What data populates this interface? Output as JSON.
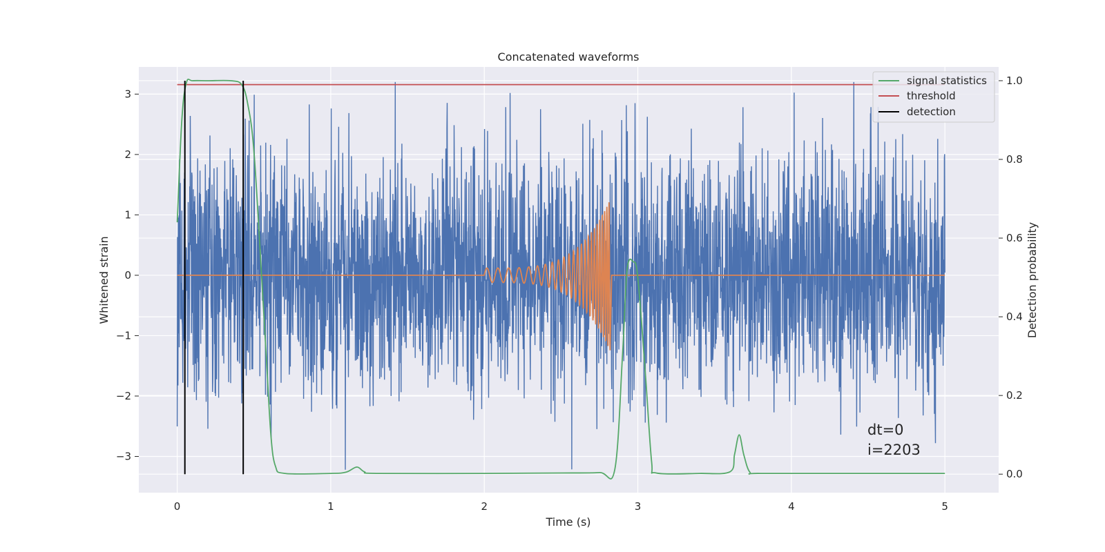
{
  "chart_data": {
    "type": "line",
    "title": "Concatenated waveforms",
    "xlabel": "Time (s)",
    "ylabel_left": "Whitened strain",
    "ylabel_right": "Detection probability",
    "xlim": [
      -0.25,
      5.35
    ],
    "ylim_left": [
      -3.6,
      3.45
    ],
    "ylim_right": [
      -0.047,
      1.035
    ],
    "x_ticks": [
      0,
      1,
      2,
      3,
      4,
      5
    ],
    "x_tick_labels": [
      "0",
      "1",
      "2",
      "3",
      "4",
      "5"
    ],
    "y_left_ticks": [
      3,
      2,
      1,
      0,
      -1,
      -2,
      -3
    ],
    "y_left_tick_labels": [
      "3",
      "2",
      "1",
      "0",
      "−1",
      "−2",
      "−3"
    ],
    "y_right_ticks": [
      1.0,
      0.8,
      0.6,
      0.4,
      0.2,
      0.0
    ],
    "y_right_tick_labels": [
      "1.0",
      "0.8",
      "0.6",
      "0.4",
      "0.2",
      "0.0"
    ],
    "grid": true,
    "legend_position": "top-right",
    "series": [
      {
        "name": "whitened strain (noisy)",
        "axis": "left",
        "color": "#4c72b0",
        "description": "dense noise between roughly -2.9 and +3.2",
        "x_range": [
          0,
          5
        ],
        "approx_range": [
          -3.3,
          3.2
        ]
      },
      {
        "name": "waveform",
        "axis": "left",
        "color": "#dd8452",
        "description": "chirp starting at 2.0 s, growing to ~1.2 amplitude, ending at 2.82 s",
        "chirp_start": 2.0,
        "chirp_end": 2.82,
        "peak_amplitude": 1.25
      },
      {
        "name": "signal statistics",
        "axis": "right",
        "color": "#55a868",
        "points": [
          [
            0.0,
            0.64
          ],
          [
            0.03,
            0.9
          ],
          [
            0.06,
            0.995
          ],
          [
            0.1,
            1.0
          ],
          [
            0.2,
            1.0
          ],
          [
            0.35,
            1.0
          ],
          [
            0.42,
            0.99
          ],
          [
            0.46,
            0.94
          ],
          [
            0.5,
            0.82
          ],
          [
            0.55,
            0.5
          ],
          [
            0.58,
            0.3
          ],
          [
            0.61,
            0.1
          ],
          [
            0.64,
            0.02
          ],
          [
            0.7,
            0.002
          ],
          [
            1.0,
            0.002
          ],
          [
            1.1,
            0.005
          ],
          [
            1.17,
            0.018
          ],
          [
            1.22,
            0.006
          ],
          [
            1.3,
            0.002
          ],
          [
            2.0,
            0.002
          ],
          [
            2.5,
            0.003
          ],
          [
            2.75,
            0.004
          ],
          [
            2.85,
            0.012
          ],
          [
            2.9,
            0.3
          ],
          [
            2.93,
            0.52
          ],
          [
            2.97,
            0.54
          ],
          [
            3.0,
            0.5
          ],
          [
            3.05,
            0.25
          ],
          [
            3.09,
            0.03
          ],
          [
            3.12,
            0.003
          ],
          [
            3.4,
            0.002
          ],
          [
            3.6,
            0.006
          ],
          [
            3.63,
            0.05
          ],
          [
            3.66,
            0.1
          ],
          [
            3.69,
            0.05
          ],
          [
            3.73,
            0.005
          ],
          [
            3.8,
            0.002
          ],
          [
            4.5,
            0.002
          ],
          [
            5.0,
            0.002
          ]
        ]
      },
      {
        "name": "threshold",
        "axis": "right",
        "color": "#c44e52",
        "points": [
          [
            0.0,
            0.99
          ],
          [
            5.0,
            0.99
          ]
        ]
      },
      {
        "name": "detection",
        "axis": "right",
        "color": "#000000",
        "x_values": [
          0.05,
          0.43
        ],
        "y_span": [
          0.0,
          1.0
        ]
      }
    ],
    "legend_entries": [
      "signal statistics",
      "threshold",
      "detection"
    ],
    "annotations": [
      "dt=0",
      "i=2203"
    ]
  }
}
